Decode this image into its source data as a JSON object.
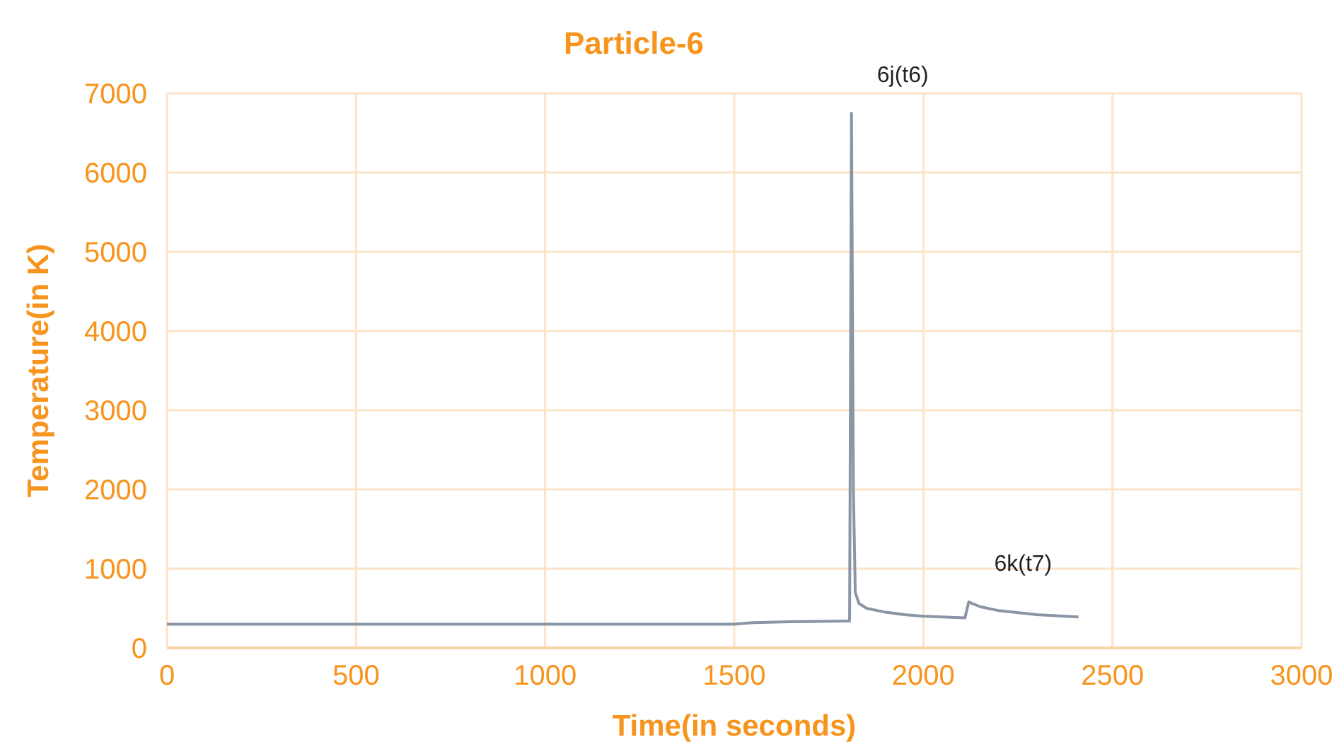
{
  "chart_data": {
    "type": "line",
    "title": "Particle-6",
    "xlabel": "Time(in seconds)",
    "ylabel": "Temperature(in K)",
    "x": [
      0,
      500,
      1000,
      1500,
      1550,
      1650,
      1800,
      1805,
      1810,
      1815,
      1820,
      1830,
      1850,
      1900,
      1950,
      2000,
      2050,
      2110,
      2115,
      2120,
      2150,
      2200,
      2300,
      2410
    ],
    "series": [
      {
        "color": "#8a95a5",
        "values": [
          300,
          300,
          300,
          300,
          320,
          330,
          340,
          340,
          6750,
          2000,
          700,
          560,
          500,
          450,
          420,
          400,
          390,
          380,
          480,
          580,
          520,
          470,
          420,
          390
        ]
      }
    ],
    "xlim": [
      0,
      3000
    ],
    "xticks": [
      0,
      500,
      1000,
      1500,
      2000,
      2500,
      3000
    ],
    "ylim": [
      0,
      7000
    ],
    "yticks": [
      0,
      1000,
      2000,
      3000,
      4000,
      5000,
      6000,
      7000
    ],
    "grid": true,
    "marker": "none",
    "line_style": "solid",
    "annotations": [
      {
        "text": "6j(t6)",
        "x": 1810,
        "y": 6750
      },
      {
        "text": "6k(t7)",
        "x": 2120,
        "y": 580
      }
    ]
  }
}
